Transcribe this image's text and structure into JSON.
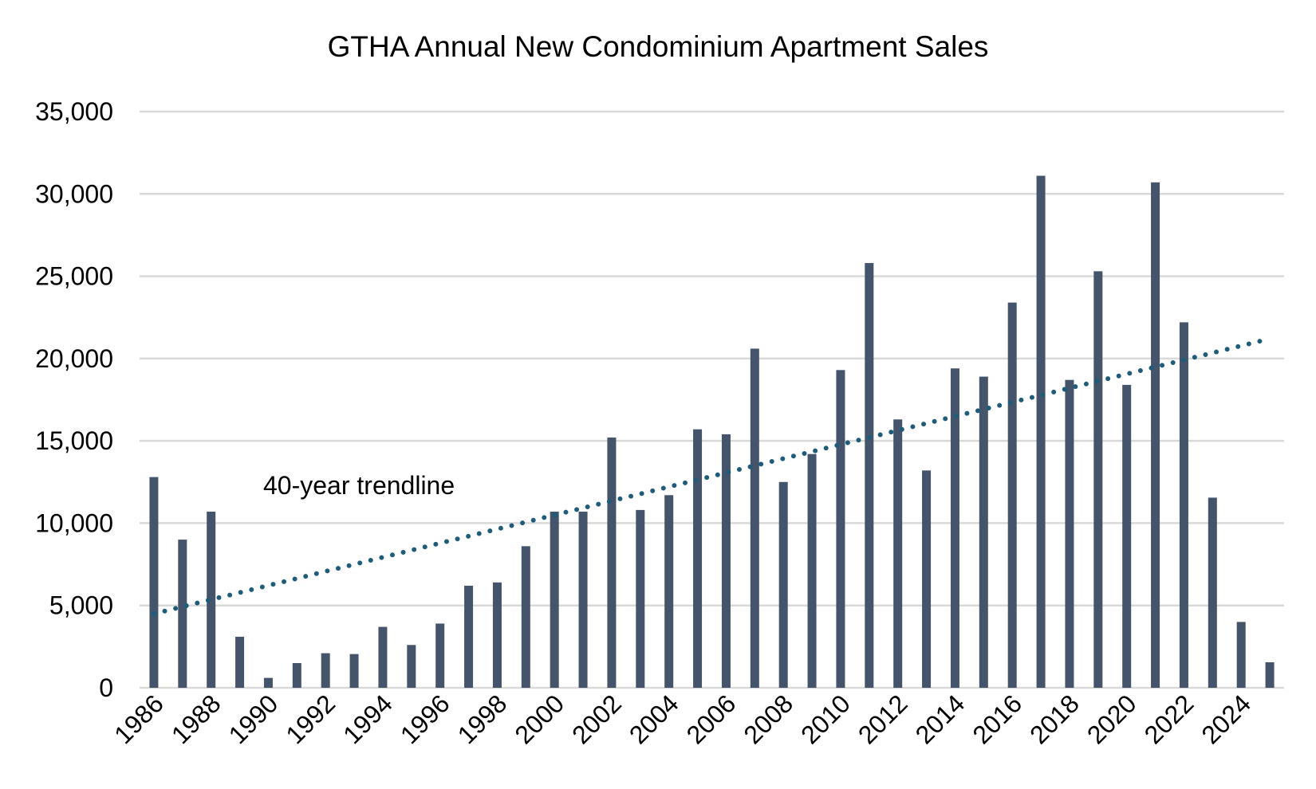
{
  "chart_data": {
    "type": "bar",
    "title": "GTHA Annual New Condominium Apartment Sales",
    "xlabel": "",
    "ylabel": "",
    "ylim": [
      0,
      35000
    ],
    "yticks": [
      0,
      5000,
      10000,
      15000,
      20000,
      25000,
      30000,
      35000
    ],
    "ytick_labels": [
      "0",
      "5,000",
      "10,000",
      "15,000",
      "20,000",
      "25,000",
      "30,000",
      "35,000"
    ],
    "categories": [
      "1986",
      "1987",
      "1988",
      "1989",
      "1990",
      "1991",
      "1992",
      "1993",
      "1994",
      "1995",
      "1996",
      "1997",
      "1998",
      "1999",
      "2000",
      "2001",
      "2002",
      "2003",
      "2004",
      "2005",
      "2006",
      "2007",
      "2008",
      "2009",
      "2010",
      "2011",
      "2012",
      "2013",
      "2014",
      "2015",
      "2016",
      "2017",
      "2018",
      "2019",
      "2020",
      "2021",
      "2022",
      "2023",
      "2024",
      "2025"
    ],
    "xtick_labels": [
      "1986",
      "1988",
      "1990",
      "1992",
      "1994",
      "1996",
      "1998",
      "2000",
      "2002",
      "2004",
      "2006",
      "2008",
      "2010",
      "2012",
      "2014",
      "2016",
      "2018",
      "2020",
      "2022",
      "2024"
    ],
    "series": [
      {
        "name": "New condominium apartment sales",
        "color": "#44546A",
        "values": [
          12800,
          9000,
          10700,
          3100,
          600,
          1500,
          2100,
          2050,
          3700,
          2600,
          3900,
          6200,
          6400,
          8600,
          10700,
          10700,
          15200,
          10800,
          11700,
          15700,
          15400,
          20600,
          12500,
          14200,
          19300,
          25800,
          16300,
          13200,
          19400,
          18900,
          23400,
          31100,
          18700,
          25300,
          18400,
          30700,
          22200,
          11550,
          4000,
          1550
        ]
      }
    ],
    "trendline": {
      "label": "40-year trendline",
      "style": "dotted",
      "color": "#1F5C7A",
      "start_value": 4500,
      "end_value": 21200
    },
    "grid": true,
    "legend": "none"
  }
}
